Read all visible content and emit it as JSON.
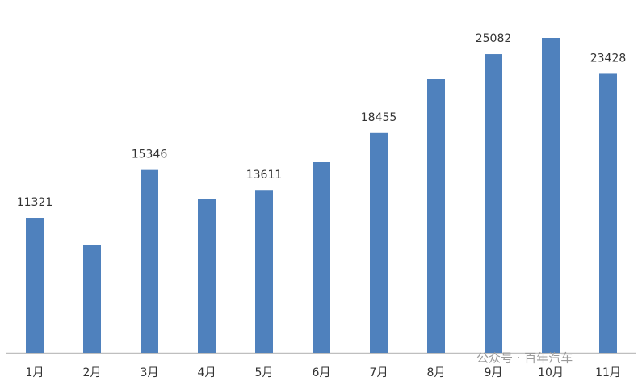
{
  "chart_data": {
    "type": "bar",
    "categories": [
      "1月",
      "2月",
      "3月",
      "4月",
      "5月",
      "6月",
      "7月",
      "8月",
      "9月",
      "10月",
      "11月"
    ],
    "values": [
      11321,
      9085,
      15346,
      12949,
      13611,
      16000,
      18455,
      22983,
      25082,
      26441,
      23428
    ],
    "value_labels": [
      "11321",
      null,
      "15346",
      null,
      "13611",
      null,
      "18455",
      null,
      "25082",
      null,
      "23428"
    ],
    "color": "#4f81bd",
    "watermark": "公众号 · 百年汽车"
  }
}
